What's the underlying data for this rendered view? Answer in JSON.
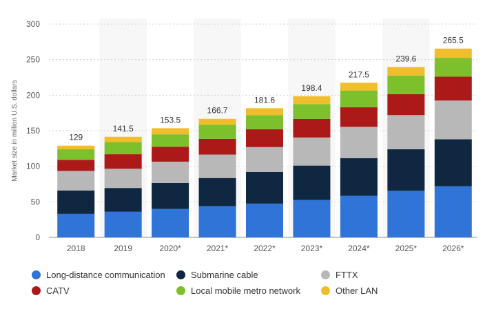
{
  "chart_data": {
    "type": "bar",
    "stacked": true,
    "categories": [
      "2018",
      "2019",
      "2020*",
      "2021*",
      "2022*",
      "2023*",
      "2024*",
      "2025*",
      "2026*"
    ],
    "totals": [
      "129",
      "141.5",
      "153.5",
      "166.7",
      "181.6",
      "198.4",
      "217.5",
      "239.6",
      "265.5"
    ],
    "series": [
      {
        "name": "Long-distance communication",
        "color": "#2f74d6",
        "values": [
          33,
          36,
          40,
          44,
          47.5,
          52.5,
          58.5,
          65.5,
          72
        ]
      },
      {
        "name": "Submarine cable",
        "color": "#0f2740",
        "values": [
          33,
          33.5,
          36.5,
          39.5,
          44.5,
          48.5,
          53,
          58.5,
          66
        ]
      },
      {
        "name": "FTTX",
        "color": "#b8b8b8",
        "values": [
          27.5,
          27,
          30,
          33,
          35,
          39.5,
          44,
          48,
          54.5
        ]
      },
      {
        "name": "CATV",
        "color": "#ab1919",
        "values": [
          15.5,
          20.5,
          21,
          22,
          25,
          26,
          27.5,
          29.5,
          33.5
        ]
      },
      {
        "name": "Local mobile metro network",
        "color": "#7cc02b",
        "values": [
          15,
          17,
          17.5,
          20,
          20,
          21,
          23.5,
          26,
          26.5
        ]
      },
      {
        "name": "Other LAN",
        "color": "#f0bd2c",
        "values": [
          5,
          7.5,
          8.5,
          8.2,
          9.6,
          10.9,
          11,
          12.1,
          13
        ]
      }
    ],
    "ylabel": "Market size in million U.S. dollars",
    "yticks": [
      0,
      50,
      100,
      150,
      200,
      250,
      300
    ],
    "ylim": [
      0,
      300
    ],
    "grid": true,
    "legend_position": "bottom"
  }
}
